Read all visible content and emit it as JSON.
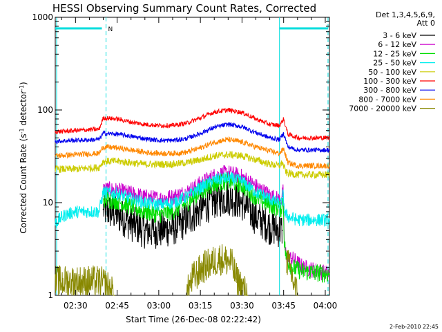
{
  "chart_data": {
    "type": "line",
    "title": "HESSI Observing Summary Count Rates, Corrected",
    "xlabel": "Start Time (26-Dec-08 02:22:42)",
    "ylabel_main": "Corrected Count Rate (s",
    "ylabel_sup1": "-1",
    "ylabel_mid": " detector",
    "ylabel_sup2": "-1",
    "ylabel_end": ")",
    "y_scale": "log",
    "xlim_min": [
      22.7,
      121.5
    ],
    "ylim": [
      1,
      1000
    ],
    "x_ticks": [
      {
        "min": 30,
        "label": "02:30"
      },
      {
        "min": 45,
        "label": "02:45"
      },
      {
        "min": 60,
        "label": "03:00"
      },
      {
        "min": 75,
        "label": "03:15"
      },
      {
        "min": 90,
        "label": "03:30"
      },
      {
        "min": 105,
        "label": "03:45"
      },
      {
        "min": 120,
        "label": "04:00"
      }
    ],
    "y_ticks": [
      {
        "value": 1,
        "label": "1"
      },
      {
        "value": 10,
        "label": "10"
      },
      {
        "value": 100,
        "label": "100"
      },
      {
        "value": 1000,
        "label": "1000"
      }
    ],
    "legend_header": [
      "Det 1,3,4,5,6,9,",
      "Att 0"
    ],
    "legend_position": "right",
    "series": [
      {
        "name": "3 - 6 keV",
        "color": "#000000",
        "x": [
          22.7,
          38.5,
          40.0,
          45,
          50,
          55,
          60,
          65,
          70,
          75,
          80,
          85,
          90,
          95,
          100,
          104.5,
          105.3,
          106
        ],
        "y": [
          null,
          null,
          8.5,
          7.5,
          6.0,
          5.0,
          5.0,
          5.3,
          6.5,
          8.5,
          10.5,
          11.5,
          10.0,
          7.0,
          5.5,
          5.0,
          null,
          null
        ]
      },
      {
        "name": "6 - 12 keV",
        "color": "#cc00cc",
        "x": [
          22.7,
          38.5,
          40,
          45,
          50,
          55,
          60,
          65,
          70,
          75,
          80,
          85,
          90,
          95,
          100,
          104,
          104.8,
          105.3,
          106,
          108,
          112,
          121.5
        ],
        "y": [
          null,
          null,
          14,
          13.5,
          12.5,
          11.5,
          11.0,
          11.5,
          13.0,
          16.0,
          19.5,
          21.0,
          19.0,
          15.0,
          12.0,
          10.5,
          13.0,
          3.5,
          2.5,
          2.5,
          2.0,
          1.7
        ]
      },
      {
        "name": "12 - 25 keV",
        "color": "#00dd00",
        "x": [
          22.7,
          38.5,
          40,
          45,
          50,
          55,
          60,
          65,
          70,
          75,
          80,
          85,
          90,
          95,
          100,
          104,
          104.8,
          105.3,
          106,
          108,
          112,
          121.5
        ],
        "y": [
          null,
          null,
          11,
          10.5,
          9.0,
          8.0,
          7.5,
          8.0,
          10.0,
          13.0,
          16.0,
          17.0,
          15.5,
          11.5,
          9.5,
          8.5,
          11.0,
          3.5,
          2.5,
          2.0,
          1.8,
          1.7
        ]
      },
      {
        "name": "25 - 50 keV",
        "color": "#00eeee",
        "x": [
          22.7,
          25,
          27,
          30,
          35,
          38.5,
          40,
          45,
          50,
          55,
          60,
          65,
          70,
          75,
          80,
          85,
          90,
          95,
          100,
          104,
          104.8,
          105.5,
          107,
          110,
          115,
          121.5
        ],
        "y": [
          6.0,
          7.0,
          7.5,
          8.0,
          8.0,
          8.0,
          13.0,
          12.5,
          11.0,
          10.0,
          9.5,
          10.0,
          11.5,
          14.5,
          17.5,
          18.5,
          17.0,
          13.0,
          11.0,
          9.5,
          12.0,
          7.5,
          7.0,
          6.5,
          6.5,
          6.5
        ]
      },
      {
        "name": "50 - 100 keV",
        "color": "#cccc00",
        "x": [
          22.7,
          30,
          38.5,
          40,
          45,
          50,
          55,
          60,
          65,
          70,
          75,
          80,
          85,
          90,
          95,
          100,
          103.5,
          104.5,
          106,
          110,
          115,
          121.5
        ],
        "y": [
          23,
          23,
          24,
          28,
          28,
          27,
          26,
          26,
          26,
          27,
          29,
          32,
          33,
          32,
          29,
          26,
          25,
          27,
          21,
          20,
          20,
          20
        ]
      },
      {
        "name": "100 - 300 keV",
        "color": "#ff0000",
        "x": [
          22.7,
          30,
          38.5,
          40,
          45,
          50,
          55,
          60,
          65,
          70,
          75,
          80,
          85,
          90,
          95,
          100,
          103.5,
          105,
          106.5,
          110,
          115,
          121.5
        ],
        "y": [
          58,
          60,
          62,
          82,
          80,
          74,
          70,
          68,
          68,
          72,
          82,
          95,
          100,
          94,
          80,
          70,
          68,
          80,
          55,
          50,
          50,
          50
        ]
      },
      {
        "name": "300 - 800 keV",
        "color": "#0000ee",
        "x": [
          22.7,
          30,
          38.5,
          40,
          45,
          50,
          55,
          60,
          65,
          70,
          75,
          80,
          85,
          90,
          95,
          100,
          103.5,
          105,
          106.5,
          110,
          115,
          121.5
        ],
        "y": [
          46,
          47,
          48,
          56,
          55,
          52,
          49,
          47,
          47,
          49,
          56,
          65,
          70,
          66,
          57,
          50,
          48,
          56,
          40,
          37,
          37,
          37
        ]
      },
      {
        "name": "800 - 7000 keV",
        "color": "#ff8800",
        "x": [
          22.7,
          30,
          38.5,
          40,
          45,
          50,
          55,
          60,
          65,
          70,
          75,
          80,
          85,
          90,
          95,
          100,
          103.5,
          105,
          106.5,
          110,
          115,
          121.5
        ],
        "y": [
          32,
          33,
          34,
          40,
          39,
          37,
          35,
          34,
          34,
          35,
          39,
          45,
          48,
          45,
          40,
          36,
          34,
          38,
          27,
          25,
          25,
          25
        ]
      },
      {
        "name": "7000 - 20000 keV",
        "color": "#888800",
        "x": [
          22.7,
          38.5,
          41,
          44,
          56,
          64,
          70,
          72,
          76,
          82,
          86,
          88,
          92,
          104,
          106,
          110,
          121.5
        ],
        "y": [
          1.4,
          1.4,
          1.3,
          1.0,
          null,
          null,
          1.0,
          1.5,
          2.0,
          2.5,
          2.3,
          1.5,
          1.0,
          null,
          2.5,
          1.0,
          null
        ]
      }
    ],
    "annotations": [
      {
        "text": "N",
        "color": "#00cccc"
      }
    ],
    "footer_date": "2-Feb-2010 22:45"
  }
}
